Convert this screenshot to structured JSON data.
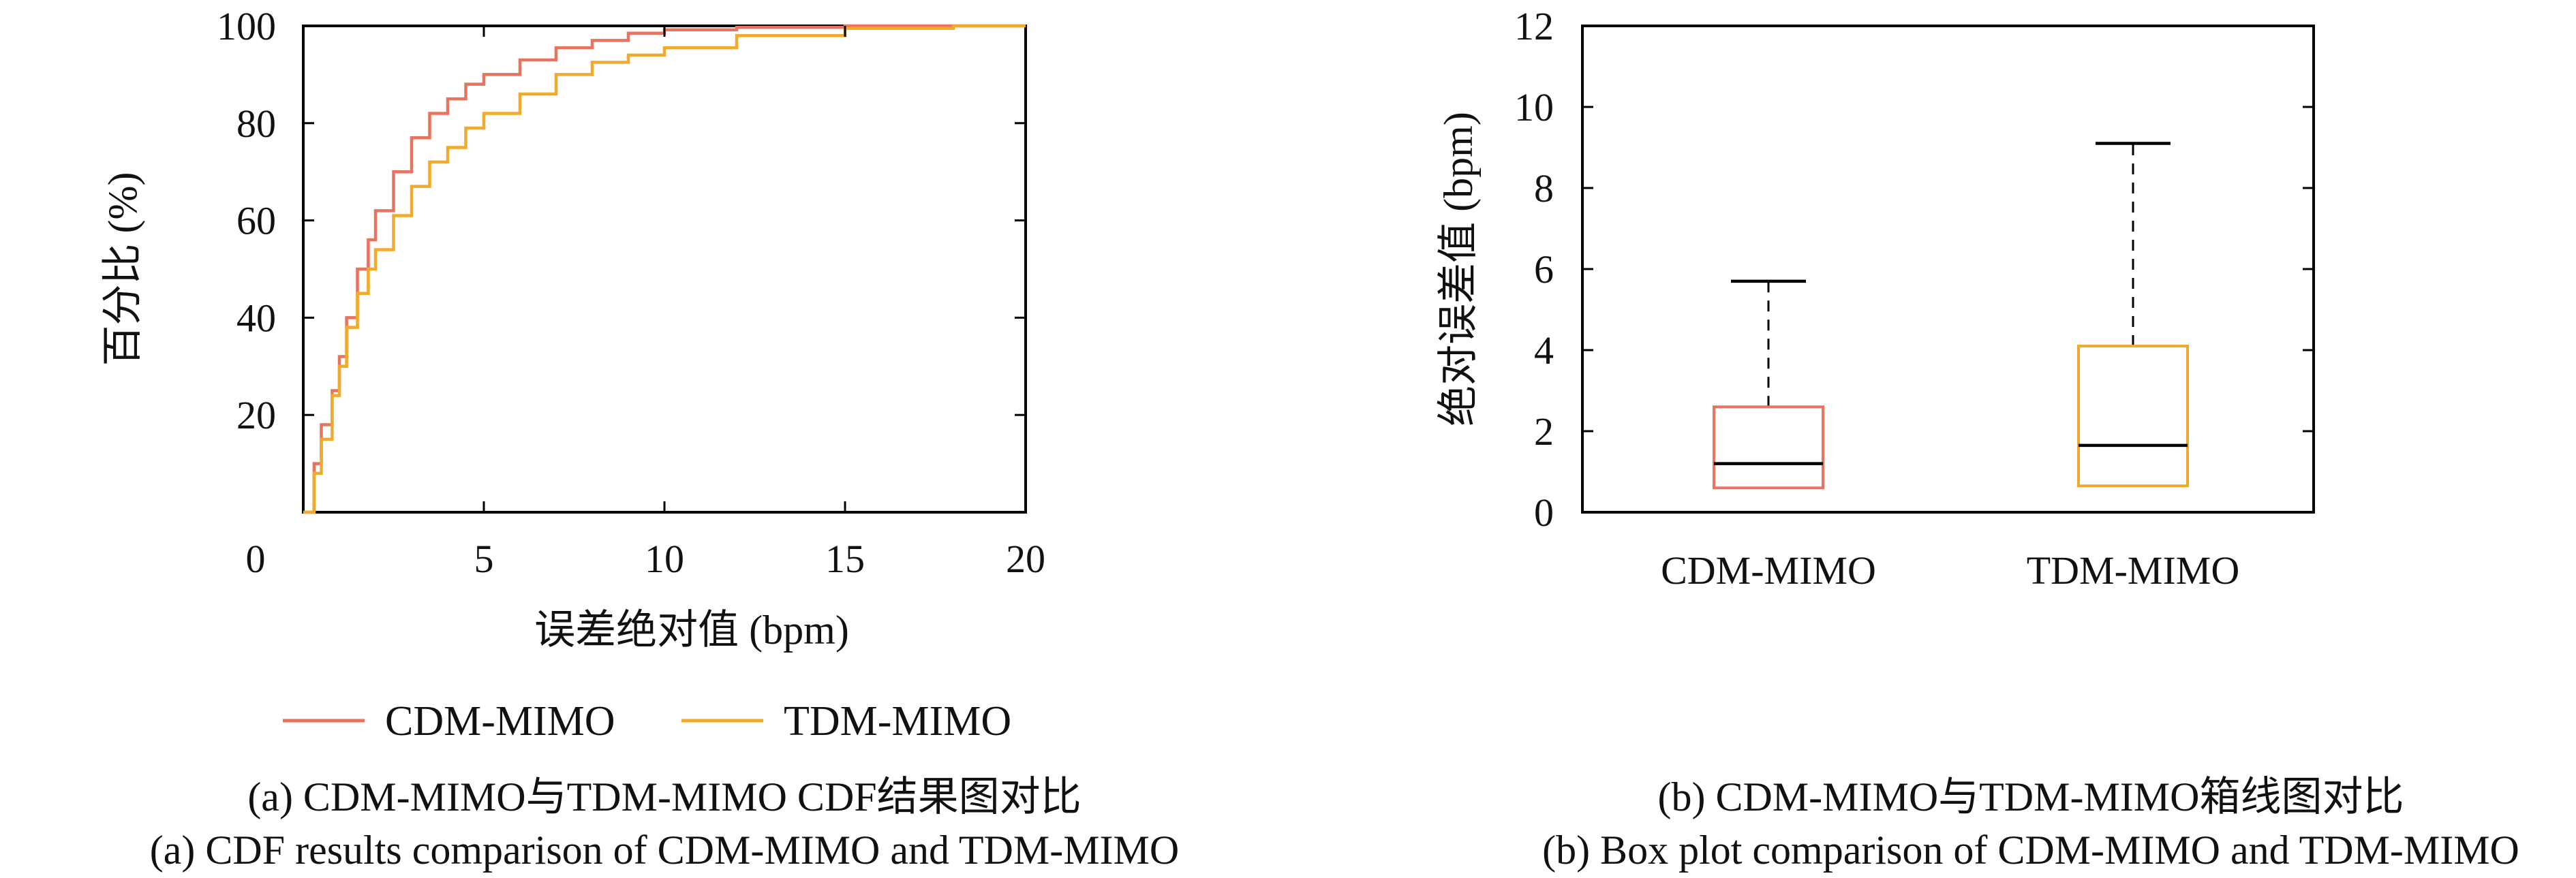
{
  "colors": {
    "cdm": "#e8735f",
    "tdm": "#f2aa2a",
    "axis": "#000000",
    "median": "#000000"
  },
  "captions": {
    "a_zh": "(a) CDM-MIMO与TDM-MIMO CDF结果图对比",
    "a_en": "(a) CDF results comparison of CDM-MIMO and TDM-MIMO",
    "b_zh": "(b) CDM-MIMO与TDM-MIMO箱线图对比",
    "b_en": "(b) Box plot comparison of CDM-MIMO and TDM-MIMO"
  },
  "chart_data": [
    {
      "type": "line",
      "xlabel": "误差绝对值 (bpm)",
      "ylabel": "百分比 (%)",
      "xlim": [
        0,
        20
      ],
      "ylim": [
        0,
        100
      ],
      "xticks": [
        "0",
        "5",
        "10",
        "15",
        "20"
      ],
      "yticks": [
        "20",
        "40",
        "60",
        "80",
        "100"
      ],
      "legend": "bottom",
      "grid": false,
      "series": [
        {
          "name": "CDM-MIMO",
          "x": [
            0,
            0.3,
            0.5,
            0.8,
            1.0,
            1.2,
            1.5,
            1.8,
            2.0,
            2.5,
            3.0,
            3.5,
            4.0,
            4.5,
            5.0,
            6.0,
            7.0,
            8.0,
            9.0,
            10.0,
            12.0,
            15.0,
            18.0,
            20.0
          ],
          "y": [
            0,
            10,
            18,
            25,
            32,
            40,
            50,
            56,
            62,
            70,
            77,
            82,
            85,
            88,
            90,
            93,
            95.5,
            97,
            98.5,
            99.2,
            99.7,
            100,
            100,
            100
          ]
        },
        {
          "name": "TDM-MIMO",
          "x": [
            0,
            0.3,
            0.5,
            0.8,
            1.0,
            1.2,
            1.5,
            1.8,
            2.0,
            2.5,
            3.0,
            3.5,
            4.0,
            4.5,
            5.0,
            6.0,
            7.0,
            8.0,
            9.0,
            10.0,
            12.0,
            15.0,
            18.0,
            20.0
          ],
          "y": [
            0,
            8,
            15,
            24,
            30,
            38,
            45,
            50,
            54,
            61,
            67,
            72,
            75,
            79,
            82,
            86,
            90,
            92.5,
            94,
            95.5,
            98,
            99.5,
            100,
            100
          ]
        }
      ]
    },
    {
      "type": "box",
      "ylabel": "绝对误差值 (bpm)",
      "ylim": [
        0,
        12
      ],
      "yticks": [
        "0",
        "2",
        "4",
        "6",
        "8",
        "10",
        "12"
      ],
      "categories": [
        "CDM-MIMO",
        "TDM-MIMO"
      ],
      "boxes": [
        {
          "whisker_low": 0.6,
          "q1": 0.6,
          "median": 1.2,
          "q3": 2.6,
          "whisker_high": 5.7
        },
        {
          "whisker_low": 0.65,
          "q1": 0.65,
          "median": 1.65,
          "q3": 4.1,
          "whisker_high": 9.1
        }
      ]
    }
  ]
}
